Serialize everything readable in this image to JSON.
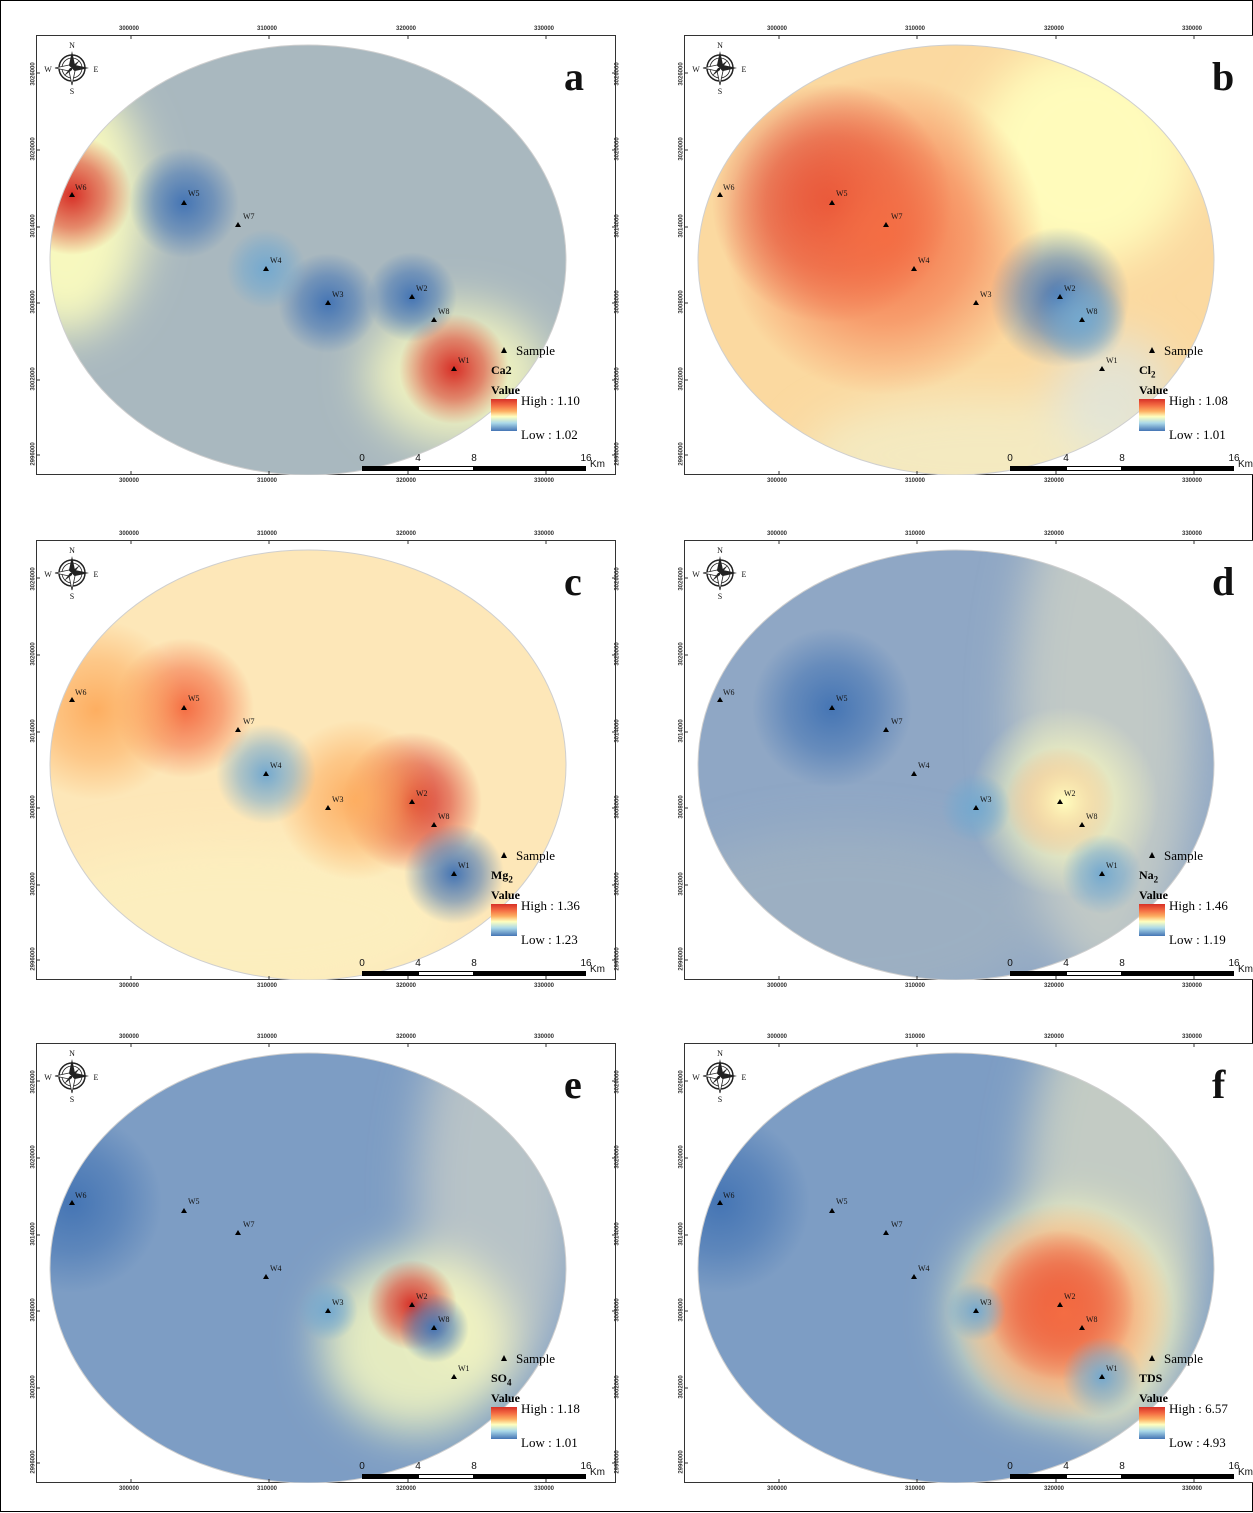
{
  "figure": {
    "legend_sample_label": "Sample",
    "legend_value_header": "Value",
    "scale_ticks": [
      "0",
      "4",
      "8",
      "16"
    ],
    "scale_unit": "Km",
    "compass": {
      "n": "N",
      "s": "S",
      "e": "E",
      "w": "W"
    },
    "x_axis_labels": [
      "300000",
      "310000",
      "320000",
      "330000"
    ],
    "y_axis_labels": [
      "3026000",
      "3020000",
      "3014000",
      "3008000",
      "3002000",
      "2996000"
    ],
    "color_ramp": {
      "high": "#d73027",
      "mid": "#ffffbf",
      "low": "#4575b4"
    },
    "wells": [
      "W1",
      "W2",
      "W3",
      "W4",
      "W5",
      "W6",
      "W7",
      "W8"
    ]
  },
  "panels": [
    {
      "id": "a",
      "letter": "a",
      "parameter": "Ca2",
      "parameter_sub": "",
      "high_label": "High : 1.10",
      "low_label": "Low : 1.02"
    },
    {
      "id": "b",
      "letter": "b",
      "parameter": "Cl",
      "parameter_sub": "2",
      "high_label": "High : 1.08",
      "low_label": "Low : 1.01"
    },
    {
      "id": "c",
      "letter": "c",
      "parameter": "Mg",
      "parameter_sub": "2",
      "high_label": "High : 1.36",
      "low_label": "Low : 1.23"
    },
    {
      "id": "d",
      "letter": "d",
      "parameter": "Na",
      "parameter_sub": "2",
      "high_label": "High : 1.46",
      "low_label": "Low : 1.19"
    },
    {
      "id": "e",
      "letter": "e",
      "parameter": "SO",
      "parameter_sub": "4",
      "high_label": "High : 1.18",
      "low_label": "Low : 1.01"
    },
    {
      "id": "f",
      "letter": "f",
      "parameter": "TDS",
      "parameter_sub": "",
      "high_label": "High : 6.57",
      "low_label": "Low : 4.93"
    }
  ]
}
